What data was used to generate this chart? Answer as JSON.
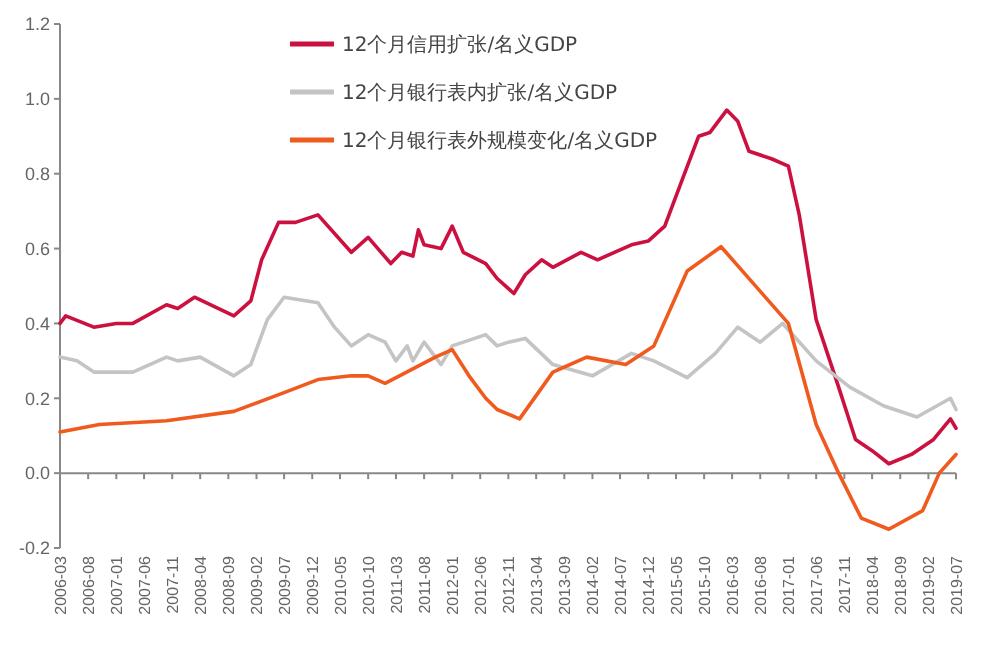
{
  "chart_data": {
    "type": "line",
    "xlim": [
      "2006-03",
      "2019-07"
    ],
    "xticks": [
      "2006-03",
      "2006-08",
      "2007-01",
      "2007-06",
      "2007-11",
      "2008-04",
      "2008-09",
      "2009-02",
      "2009-07",
      "2009-12",
      "2010-05",
      "2010-10",
      "2011-03",
      "2011-08",
      "2012-01",
      "2012-06",
      "2012-11",
      "2013-04",
      "2013-09",
      "2014-02",
      "2014-07",
      "2014-12",
      "2015-05",
      "2015-10",
      "2016-03",
      "2016-08",
      "2017-01",
      "2017-06",
      "2017-11",
      "2018-04",
      "2018-09",
      "2019-02",
      "2019-07"
    ],
    "ylim": [
      -0.2,
      1.2
    ],
    "yticks": [
      -0.2,
      {
        "value": 0,
        "label": "0.0"
      },
      0.2,
      0.4,
      0.6,
      0.8,
      {
        "value": 1,
        "label": "1.0"
      },
      1.2
    ],
    "legend": "top",
    "series": [
      {
        "name": "12个月信用扩张/名义GDP",
        "color": "#cc1040",
        "x": [
          "2006-03",
          "2006-04",
          "2006-09",
          "2007-01",
          "2007-04",
          "2007-10",
          "2007-12",
          "2008-03",
          "2008-10",
          "2009-01",
          "2009-03",
          "2009-06",
          "2009-09",
          "2010-01",
          "2010-07",
          "2010-10",
          "2011-02",
          "2011-04",
          "2011-06",
          "2011-07",
          "2011-08",
          "2011-11",
          "2012-01",
          "2012-03",
          "2012-07",
          "2012-09",
          "2012-12",
          "2013-02",
          "2013-05",
          "2013-07",
          "2013-12",
          "2014-03",
          "2014-09",
          "2014-12",
          "2015-03",
          "2015-06",
          "2015-09",
          "2015-11",
          "2016-02",
          "2016-04",
          "2016-06",
          "2016-10",
          "2017-01",
          "2017-03",
          "2017-06",
          "2017-10",
          "2018-01",
          "2018-04",
          "2018-07",
          "2018-11",
          "2019-03",
          "2019-06",
          "2019-07"
        ],
        "values": [
          0.4,
          0.42,
          0.39,
          0.4,
          0.4,
          0.45,
          0.44,
          0.47,
          0.42,
          0.46,
          0.57,
          0.67,
          0.67,
          0.69,
          0.59,
          0.63,
          0.56,
          0.59,
          0.58,
          0.65,
          0.61,
          0.6,
          0.66,
          0.59,
          0.56,
          0.52,
          0.48,
          0.53,
          0.57,
          0.55,
          0.59,
          0.57,
          0.61,
          0.62,
          0.66,
          0.78,
          0.9,
          0.91,
          0.97,
          0.94,
          0.86,
          0.84,
          0.82,
          0.69,
          0.41,
          0.23,
          0.09,
          0.06,
          0.025,
          0.05,
          0.09,
          0.145,
          0.12
        ]
      },
      {
        "name": "12个月银行表内扩张/名义GDP",
        "color": "#c4c4c4",
        "x": [
          "2006-03",
          "2006-06",
          "2006-09",
          "2007-04",
          "2007-10",
          "2007-12",
          "2008-04",
          "2008-10",
          "2009-01",
          "2009-04",
          "2009-07",
          "2010-01",
          "2010-04",
          "2010-07",
          "2010-10",
          "2011-01",
          "2011-03",
          "2011-05",
          "2011-06",
          "2011-08",
          "2011-11",
          "2012-01",
          "2012-07",
          "2012-09",
          "2012-11",
          "2013-02",
          "2013-07",
          "2014-02",
          "2014-09",
          "2015-01",
          "2015-07",
          "2015-12",
          "2016-04",
          "2016-08",
          "2016-12",
          "2017-06",
          "2017-12",
          "2018-06",
          "2018-12",
          "2019-06",
          "2019-07"
        ],
        "values": [
          0.31,
          0.3,
          0.27,
          0.27,
          0.31,
          0.3,
          0.31,
          0.26,
          0.29,
          0.41,
          0.47,
          0.455,
          0.39,
          0.34,
          0.37,
          0.35,
          0.3,
          0.34,
          0.3,
          0.35,
          0.29,
          0.34,
          0.37,
          0.34,
          0.35,
          0.36,
          0.29,
          0.26,
          0.32,
          0.3,
          0.255,
          0.32,
          0.39,
          0.35,
          0.4,
          0.3,
          0.23,
          0.18,
          0.15,
          0.2,
          0.17
        ]
      },
      {
        "name": "12个月银行表外规模变化/名义GDP",
        "color": "#f05a1e",
        "x": [
          "2006-03",
          "2006-10",
          "2007-10",
          "2008-10",
          "2009-07",
          "2010-01",
          "2010-07",
          "2010-10",
          "2011-01",
          "2011-10",
          "2012-01",
          "2012-04",
          "2012-07",
          "2012-09",
          "2013-01",
          "2013-07",
          "2014-01",
          "2014-08",
          "2015-01",
          "2015-07",
          "2016-01",
          "2017-01",
          "2017-06",
          "2017-10",
          "2018-02",
          "2018-07",
          "2019-01",
          "2019-04",
          "2019-07"
        ],
        "values": [
          0.11,
          0.13,
          0.14,
          0.165,
          0.215,
          0.25,
          0.26,
          0.26,
          0.24,
          0.31,
          0.33,
          0.26,
          0.2,
          0.17,
          0.145,
          0.27,
          0.31,
          0.29,
          0.34,
          0.54,
          0.605,
          0.4,
          0.13,
          0,
          -0.12,
          -0.15,
          -0.1,
          0,
          0.05
        ]
      }
    ]
  }
}
